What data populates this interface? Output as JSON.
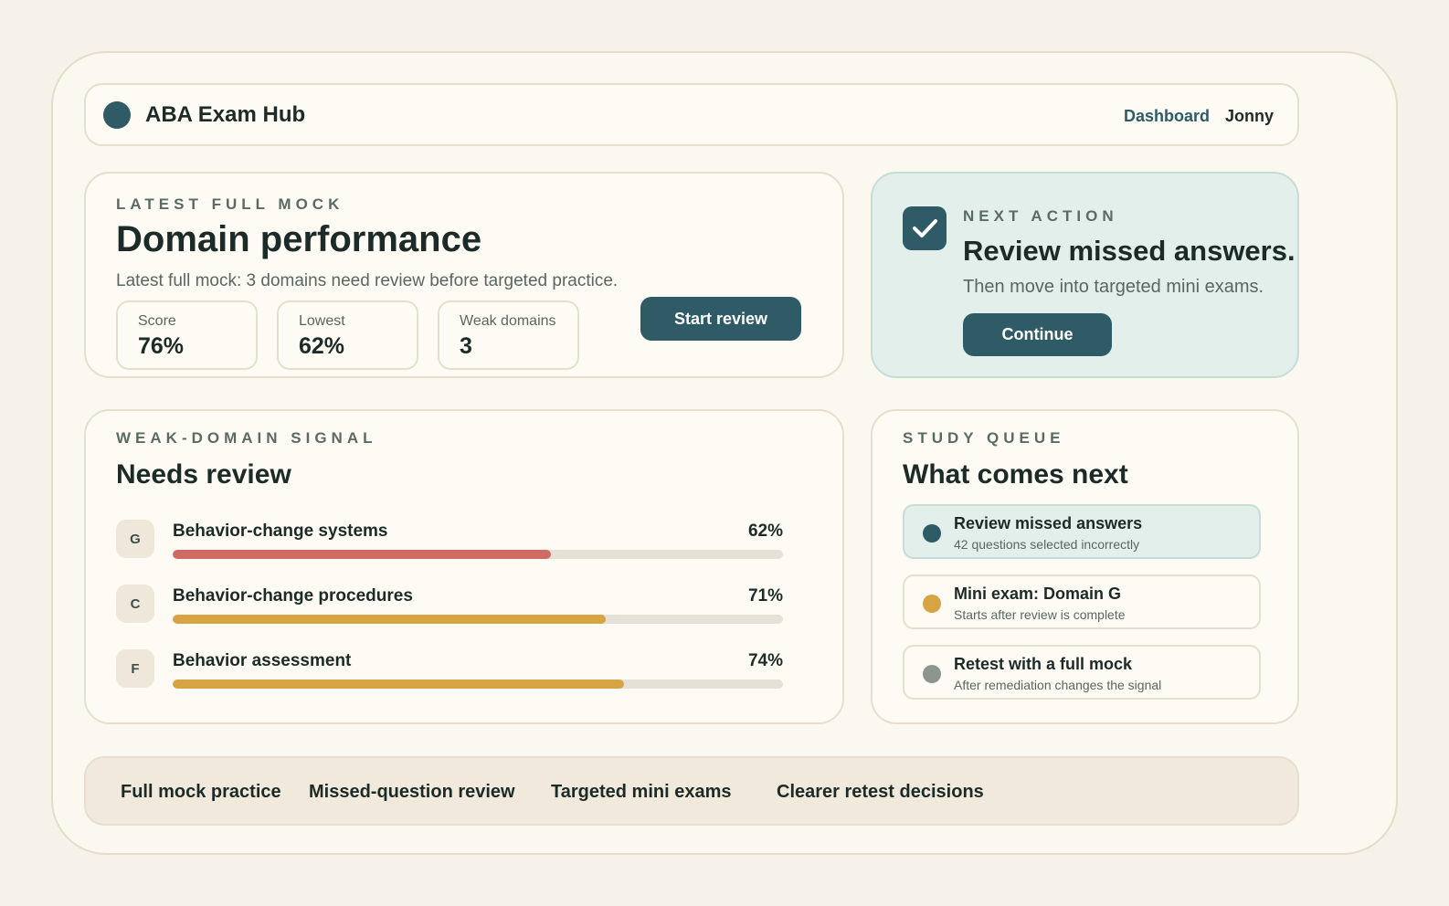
{
  "header": {
    "app_title": "ABA Exam Hub",
    "nav_dashboard": "Dashboard",
    "nav_user": "Jonny",
    "logo_icon": "logo-dot-icon"
  },
  "performance": {
    "eyebrow": "LATEST FULL MOCK",
    "title": "Domain performance",
    "subtitle": "Latest full mock: 3 domains need review before targeted practice.",
    "stats": [
      {
        "label": "Score",
        "value": "76%"
      },
      {
        "label": "Lowest",
        "value": "62%"
      },
      {
        "label": "Weak domains",
        "value": "3"
      }
    ],
    "button_label": "Start review"
  },
  "next_action": {
    "icon": "checkmark-icon",
    "eyebrow": "NEXT ACTION",
    "title": "Review missed answers.",
    "subtitle": "Then move into targeted mini exams.",
    "button_label": "Continue"
  },
  "weak_domains": {
    "eyebrow": "WEAK-DOMAIN SIGNAL",
    "title": "Needs review",
    "items": [
      {
        "badge": "G",
        "name": "Behavior-change systems",
        "percent_label": "62%",
        "percent": 62,
        "color": "#cf6b62"
      },
      {
        "badge": "C",
        "name": "Behavior-change procedures",
        "percent_label": "71%",
        "percent": 71,
        "color": "#d7a444"
      },
      {
        "badge": "F",
        "name": "Behavior assessment",
        "percent_label": "74%",
        "percent": 74,
        "color": "#d7a444"
      }
    ]
  },
  "study_queue": {
    "eyebrow": "STUDY QUEUE",
    "title": "What comes next",
    "items": [
      {
        "title": "Review missed answers",
        "subtitle": "42 questions selected incorrectly",
        "dot_color": "#2e5b66",
        "active": true
      },
      {
        "title": "Mini exam: Domain G",
        "subtitle": "Starts after review is complete",
        "dot_color": "#d7a444",
        "active": false
      },
      {
        "title": "Retest with a full mock",
        "subtitle": "After remediation changes the signal",
        "dot_color": "#8c958f",
        "active": false
      }
    ]
  },
  "footer": {
    "items": [
      "Full mock practice",
      "Missed-question review",
      "Targeted mini exams",
      "Clearer retest decisions"
    ]
  },
  "colors": {
    "accent": "#2e5b66",
    "background": "#f6f2ea",
    "danger": "#cf6b62",
    "warning": "#d7a444"
  }
}
